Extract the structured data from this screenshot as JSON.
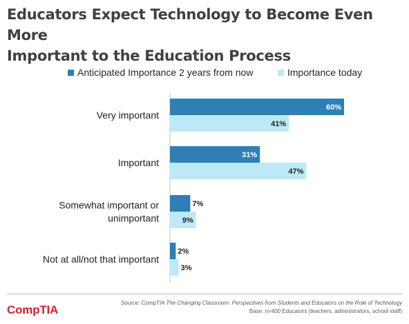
{
  "title_line1": "Educators Expect Technology to Become Even More",
  "title_line2": "Important to the Education Process",
  "colors": {
    "future": "#2e7fb5",
    "today": "#bde9f7",
    "brand": "#d2232a"
  },
  "chart_data": {
    "type": "bar",
    "orientation": "horizontal",
    "title": "Educators Expect Technology to Become Even More Important to the Education Process",
    "categories": [
      [
        "Very important"
      ],
      [
        "Important"
      ],
      [
        "Somewhat important or",
        "unimportant"
      ],
      [
        "Not at all/not that important"
      ]
    ],
    "series": [
      {
        "name": "Anticipated Importance 2 years from now",
        "values": [
          60,
          31,
          7,
          2
        ],
        "labels": [
          "60%",
          "31%",
          "7%",
          "2%"
        ]
      },
      {
        "name": "Importance today",
        "values": [
          41,
          47,
          9,
          3
        ],
        "labels": [
          "41%",
          "47%",
          "9%",
          "3%"
        ]
      }
    ],
    "xlim": [
      0,
      100
    ],
    "legend_position": "top",
    "grid": false
  },
  "footer": {
    "logo": "CompTIA",
    "source_prefix": "Source: CompTIA ",
    "source_title": "The Changing Classroom: Perspectives from Students and Educators on the Role of Technology",
    "base": "Base: n=400 Educators (teachers, administrators, school staff)"
  }
}
